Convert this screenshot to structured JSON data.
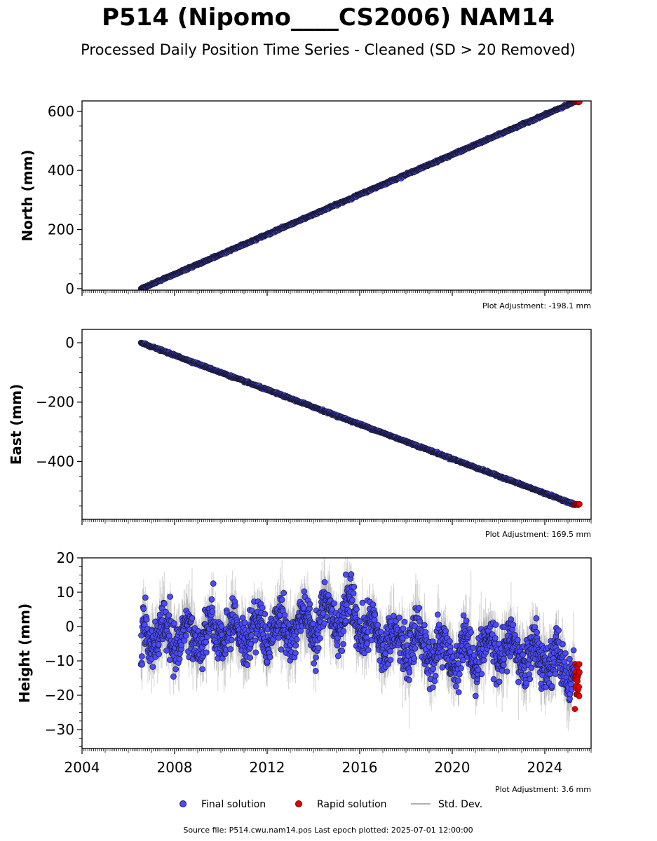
{
  "chart_data": {
    "type": "scatter",
    "title": "P514 (Nipomo____CS2006) NAM14",
    "subtitle": "Processed Daily Position Time Series - Cleaned (SD > 20 Removed)",
    "xlim": [
      2004.0,
      2026.0
    ],
    "x_ticks": [
      "2004",
      "2008",
      "2012",
      "2016",
      "2020",
      "2024"
    ],
    "legend": {
      "placement": "bottom-center",
      "entries": [
        "Final solution",
        "Rapid solution",
        "Std. Dev."
      ]
    },
    "colors": {
      "final": "#4a4aff",
      "final_edge": "#1a1a3a",
      "rapid": "#e60000",
      "std": "#b0b0b0"
    },
    "panels": [
      {
        "ylabel": "North (mm)",
        "ylim": [
          -5,
          635
        ],
        "y_ticks": [
          "0",
          "200",
          "400",
          "600"
        ],
        "adjustment": "Plot Adjustment: -198.1 mm",
        "trend": {
          "x_start": 2006.55,
          "y_start": 0,
          "x_end": 2025.3,
          "y_end": 632
        },
        "final_noise_mm": 1.5,
        "rapid": {
          "x_start": 2025.3,
          "x_end": 2025.5,
          "y": 632
        }
      },
      {
        "ylabel": "East (mm)",
        "ylim": [
          -595,
          45
        ],
        "y_ticks": [
          "0",
          "−200",
          "−400"
        ],
        "adjustment": "Plot Adjustment: 169.5 mm",
        "trend": {
          "x_start": 2006.55,
          "y_start": 0,
          "x_end": 2025.3,
          "y_end": -545
        },
        "final_noise_mm": 1.5,
        "rapid": {
          "x_start": 2025.3,
          "x_end": 2025.5,
          "y": -545
        }
      },
      {
        "ylabel": "Height (mm)",
        "ylim": [
          -35.5,
          20
        ],
        "y_ticks": [
          "20",
          "10",
          "0",
          "−10",
          "−20",
          "−30"
        ],
        "adjustment": "Plot Adjustment: 3.6 mm",
        "trend": {
          "x_start": 2006.55,
          "x_end": 2025.3
        },
        "height_profile": [
          {
            "x": 2006.6,
            "y": -2
          },
          {
            "x": 2008.0,
            "y": -3
          },
          {
            "x": 2010.0,
            "y": -2
          },
          {
            "x": 2012.0,
            "y": -1
          },
          {
            "x": 2014.0,
            "y": 1
          },
          {
            "x": 2015.5,
            "y": 4
          },
          {
            "x": 2016.5,
            "y": -3
          },
          {
            "x": 2018.0,
            "y": -4
          },
          {
            "x": 2020.0,
            "y": -9
          },
          {
            "x": 2022.0,
            "y": -6
          },
          {
            "x": 2023.5,
            "y": -9
          },
          {
            "x": 2025.3,
            "y": -12
          }
        ],
        "final_noise_mm": 6,
        "rapid": {
          "x_start": 2025.3,
          "x_end": 2025.5,
          "y_min": -24,
          "y_max": -10.5
        }
      }
    ]
  },
  "source_text": "Source file: P514.cwu.nam14.pos  Last epoch plotted: 2025-07-01 12:00:00"
}
